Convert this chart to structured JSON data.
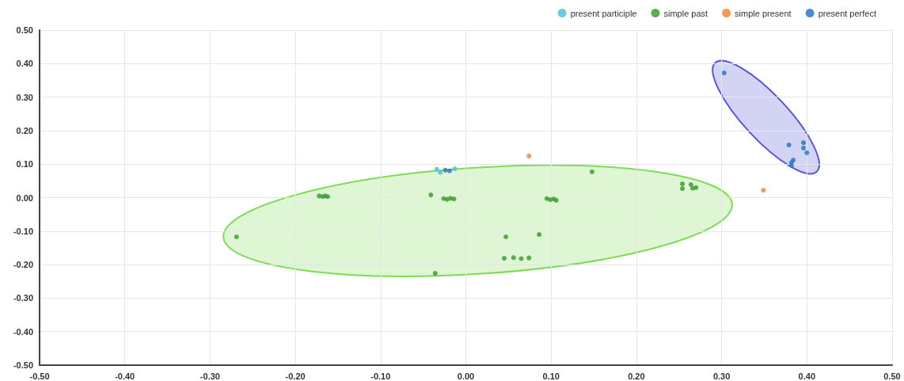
{
  "chart_data": {
    "type": "scatter",
    "xlim": [
      -0.5,
      0.5
    ],
    "ylim": [
      -0.5,
      0.5
    ],
    "xticks": [
      {
        "value": -0.5,
        "label": "-0.50"
      },
      {
        "value": -0.4,
        "label": "-0.40"
      },
      {
        "value": -0.3,
        "label": "-0.30"
      },
      {
        "value": -0.2,
        "label": "-0.20"
      },
      {
        "value": -0.1,
        "label": "-0.10"
      },
      {
        "value": 0,
        "label": "0.00"
      },
      {
        "value": 0.1,
        "label": "0.10"
      },
      {
        "value": 0.2,
        "label": "0.20"
      },
      {
        "value": 0.3,
        "label": "0.30"
      },
      {
        "value": 0.4,
        "label": "0.40"
      },
      {
        "value": 0.5,
        "label": "0.50"
      }
    ],
    "yticks": [
      {
        "value": -0.5,
        "label": "-0.50"
      },
      {
        "value": -0.4,
        "label": "-0.40"
      },
      {
        "value": -0.3,
        "label": "-0.30"
      },
      {
        "value": -0.2,
        "label": "-0.20"
      },
      {
        "value": -0.1,
        "label": "-0.10"
      },
      {
        "value": 0,
        "label": "0.00"
      },
      {
        "value": 0.1,
        "label": "0.10"
      },
      {
        "value": 0.2,
        "label": "0.20"
      },
      {
        "value": 0.3,
        "label": "0.30"
      },
      {
        "value": 0.4,
        "label": "0.40"
      },
      {
        "value": 0.5,
        "label": "0.50"
      }
    ],
    "grid": true,
    "legend": "top right",
    "marker": "circle",
    "series": [
      {
        "name": "present participle",
        "color": "#52c2dc",
        "x": [
          -0.034,
          -0.03,
          -0.013
        ],
        "values": [
          0.085,
          0.075,
          0.086
        ]
      },
      {
        "name": "simple past",
        "color": "#3f9f30",
        "x": [
          -0.172,
          -0.168,
          -0.165,
          -0.162,
          -0.041,
          -0.026,
          -0.022,
          -0.018,
          -0.014,
          -0.269,
          -0.036,
          0.047,
          0.086,
          0.148,
          0.095,
          0.099,
          0.103,
          0.106,
          0.254,
          0.254,
          0.264,
          0.27,
          0.266,
          0.045,
          0.056,
          0.065,
          0.074
        ],
        "values": [
          0.005,
          0.003,
          0.005,
          0.003,
          0.008,
          -0.003,
          -0.005,
          -0.002,
          -0.004,
          -0.117,
          -0.226,
          -0.117,
          -0.11,
          0.077,
          -0.003,
          -0.006,
          -0.004,
          -0.008,
          0.041,
          0.027,
          0.039,
          0.03,
          0.028,
          -0.181,
          -0.179,
          -0.182,
          -0.18
        ]
      },
      {
        "name": "simple present",
        "color": "#f5873b",
        "x": [
          0.074,
          0.349
        ],
        "values": [
          0.124,
          0.022
        ]
      },
      {
        "name": "present perfect",
        "color": "#2c79c3",
        "x": [
          -0.024,
          -0.019,
          0.303,
          0.379,
          0.396,
          0.396,
          0.4,
          0.384,
          0.382,
          0.382
        ],
        "values": [
          0.082,
          0.08,
          0.372,
          0.157,
          0.164,
          0.148,
          0.134,
          0.112,
          0.105,
          0.096
        ]
      }
    ]
  }
}
